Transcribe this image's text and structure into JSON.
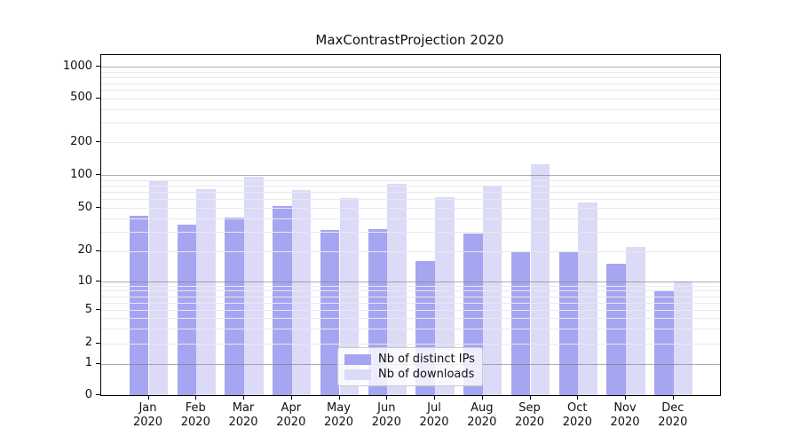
{
  "chart_data": {
    "type": "bar",
    "title": "MaxContrastProjection 2020",
    "categories": [
      "Jan 2020",
      "Feb 2020",
      "Mar 2020",
      "Apr 2020",
      "May 2020",
      "Jun 2020",
      "Jul 2020",
      "Aug 2020",
      "Sep 2020",
      "Oct 2020",
      "Nov 2020",
      "Dec 2020"
    ],
    "series": [
      {
        "name": "Nb of distinct IPs",
        "color": "#a5a5f2",
        "values": [
          42,
          35,
          41,
          52,
          31,
          32,
          16,
          29,
          20,
          20,
          15,
          8
        ]
      },
      {
        "name": "Nb of downloads",
        "color": "#dbdbf8",
        "values": [
          87,
          74,
          96,
          73,
          61,
          83,
          63,
          79,
          125,
          56,
          22,
          10
        ]
      }
    ],
    "yticks": [
      0,
      1,
      2,
      5,
      10,
      20,
      50,
      100,
      200,
      500,
      1000
    ],
    "yscale": "symlog",
    "ylim": [
      0,
      1000
    ],
    "xlabel": "",
    "ylabel": "",
    "grid": true,
    "legend_position": "lower center",
    "colors": {
      "bar_distinct_ips": "#a5a5f2",
      "bar_downloads": "#dbdbf8",
      "major_grid": "#b0b0b0",
      "minor_grid": "#e9e9ee",
      "axis": "#000000",
      "background": "#ffffff"
    }
  }
}
